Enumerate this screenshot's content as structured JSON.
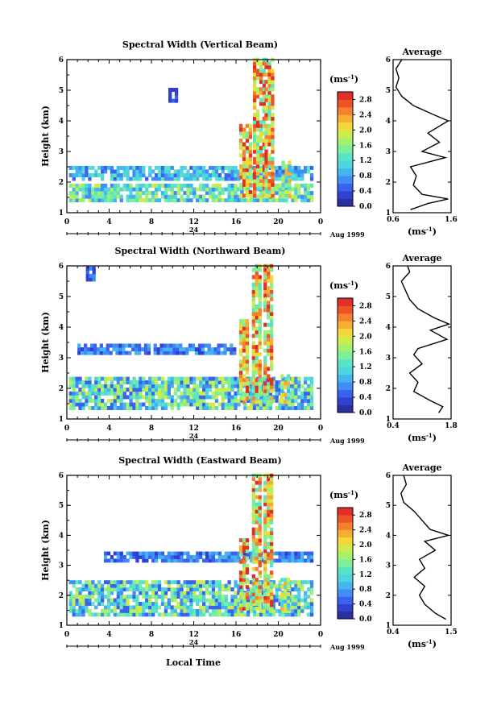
{
  "figure": {
    "xlabel": "Local Time",
    "ylabel": "Height (km)",
    "unit_label": "(ms",
    "unit_sup": "-1",
    "unit_close": ")",
    "average_title": "Average",
    "date_label": "Aug 1999"
  },
  "chart_data": [
    {
      "type": "heatmap",
      "title": "Spectral Width (Vertical Beam)",
      "xlim": [
        0,
        24
      ],
      "ylim": [
        1,
        6
      ],
      "x_ticks": [
        "0",
        "4",
        "8",
        "12",
        "16",
        "20",
        "0"
      ],
      "y_ticks": [
        "1",
        "2",
        "3",
        "4",
        "5",
        "6"
      ],
      "date_tick": "24",
      "colorbar_ticks": [
        "0.0",
        "0.4",
        "0.8",
        "1.2",
        "1.6",
        "2.0",
        "2.4",
        "2.8"
      ],
      "colorbar_range": [
        0,
        3.0
      ],
      "profile": {
        "title": "Average",
        "xlim": [
          0.6,
          1.6
        ],
        "x_ticks": [
          "0.6",
          "1.6"
        ],
        "y_ticks": [
          "1",
          "2",
          "3",
          "4",
          "5",
          "6"
        ],
        "heights": [
          1.1,
          1.3,
          1.45,
          1.6,
          1.9,
          2.2,
          2.5,
          2.8,
          3.0,
          3.3,
          3.6,
          4.0,
          4.2,
          4.5,
          4.8,
          5.1,
          5.4,
          5.7,
          6.0
        ],
        "values": [
          0.9,
          1.2,
          1.55,
          1.1,
          0.95,
          1.0,
          0.9,
          1.5,
          1.1,
          1.4,
          1.2,
          1.55,
          1.3,
          0.95,
          0.75,
          0.65,
          0.7,
          0.65,
          0.75
        ]
      },
      "regions": [
        {
          "t0": 0.2,
          "t1": 23.2,
          "h0": 1.35,
          "h1": 1.9,
          "v0": 0.6,
          "v1": 2.0
        },
        {
          "t0": 0.2,
          "t1": 23.2,
          "h0": 2.05,
          "h1": 2.45,
          "v0": 0.5,
          "v1": 1.4
        },
        {
          "t0": 16.3,
          "t1": 17.3,
          "h0": 1.5,
          "h1": 3.8,
          "v0": 1.4,
          "v1": 3.0
        },
        {
          "t0": 17.6,
          "t1": 18.6,
          "h0": 1.5,
          "h1": 6.0,
          "v0": 1.2,
          "v1": 3.0
        },
        {
          "t0": 18.7,
          "t1": 19.5,
          "h0": 1.5,
          "h1": 6.0,
          "v0": 1.2,
          "v1": 3.0
        },
        {
          "t0": 20.3,
          "t1": 21.0,
          "h0": 1.5,
          "h1": 2.6,
          "v0": 0.8,
          "v1": 2.4
        },
        {
          "t0": 9.6,
          "t1": 10.3,
          "h0": 4.6,
          "h1": 5.0,
          "v0": 0.2,
          "v1": 0.6
        }
      ]
    },
    {
      "type": "heatmap",
      "title": "Spectral Width (Northward Beam)",
      "xlim": [
        0,
        24
      ],
      "ylim": [
        1,
        6
      ],
      "x_ticks": [
        "0",
        "4",
        "8",
        "12",
        "16",
        "20",
        "0"
      ],
      "y_ticks": [
        "1",
        "2",
        "3",
        "4",
        "5",
        "6"
      ],
      "date_tick": "24",
      "colorbar_ticks": [
        "0.0",
        "0.4",
        "0.8",
        "1.2",
        "1.6",
        "2.0",
        "2.4",
        "2.8"
      ],
      "colorbar_range": [
        0,
        3.0
      ],
      "profile": {
        "title": "Average",
        "xlim": [
          0.4,
          1.8
        ],
        "x_ticks": [
          "0.4",
          "1.8"
        ],
        "y_ticks": [
          "1",
          "2",
          "3",
          "4",
          "5",
          "6"
        ],
        "heights": [
          1.2,
          1.4,
          1.6,
          1.9,
          2.2,
          2.5,
          2.8,
          3.1,
          3.3,
          3.6,
          3.9,
          4.1,
          4.3,
          4.6,
          4.9,
          5.2,
          5.5,
          5.8,
          6.0
        ],
        "values": [
          1.5,
          1.6,
          1.3,
          0.9,
          1.0,
          0.8,
          1.1,
          0.9,
          1.0,
          1.7,
          1.3,
          1.75,
          1.4,
          1.0,
          0.8,
          0.7,
          0.6,
          0.8,
          0.75
        ]
      },
      "regions": [
        {
          "t0": 0.2,
          "t1": 23.2,
          "h0": 1.3,
          "h1": 2.3,
          "v0": 0.4,
          "v1": 2.0
        },
        {
          "t0": 1.0,
          "t1": 16.0,
          "h0": 3.1,
          "h1": 3.4,
          "v0": 0.3,
          "v1": 1.0
        },
        {
          "t0": 16.3,
          "t1": 17.1,
          "h0": 1.5,
          "h1": 4.2,
          "v0": 1.4,
          "v1": 3.0
        },
        {
          "t0": 17.5,
          "t1": 18.3,
          "h0": 1.5,
          "h1": 6.0,
          "v0": 1.2,
          "v1": 3.0
        },
        {
          "t0": 18.6,
          "t1": 19.4,
          "h0": 1.5,
          "h1": 6.0,
          "v0": 1.2,
          "v1": 3.0
        },
        {
          "t0": 20.2,
          "t1": 21.0,
          "h0": 1.5,
          "h1": 2.4,
          "v0": 0.8,
          "v1": 2.4
        },
        {
          "t0": 1.8,
          "t1": 2.6,
          "h0": 5.5,
          "h1": 5.9,
          "v0": 0.3,
          "v1": 0.8
        }
      ]
    },
    {
      "type": "heatmap",
      "title": "Spectral Width (Eastward Beam)",
      "xlim": [
        0,
        24
      ],
      "ylim": [
        1,
        6
      ],
      "x_ticks": [
        "0",
        "4",
        "8",
        "12",
        "16",
        "20",
        "0"
      ],
      "y_ticks": [
        "1",
        "2",
        "3",
        "4",
        "5",
        "6"
      ],
      "date_tick": "24",
      "colorbar_ticks": [
        "0.0",
        "0.4",
        "0.8",
        "1.2",
        "1.6",
        "2.0",
        "2.4",
        "2.8"
      ],
      "colorbar_range": [
        0,
        3.0
      ],
      "profile": {
        "title": "Average",
        "xlim": [
          0.4,
          1.5
        ],
        "x_ticks": [
          "0.4",
          "1.5"
        ],
        "y_ticks": [
          "1",
          "2",
          "3",
          "4",
          "5",
          "6"
        ],
        "heights": [
          1.2,
          1.4,
          1.7,
          2.0,
          2.3,
          2.6,
          2.9,
          3.2,
          3.5,
          3.8,
          4.0,
          4.2,
          4.5,
          4.8,
          5.1,
          5.4,
          5.7,
          6.0
        ],
        "values": [
          1.4,
          1.2,
          1.0,
          0.9,
          1.0,
          0.8,
          1.0,
          0.9,
          1.2,
          1.0,
          1.45,
          1.1,
          0.95,
          0.8,
          0.6,
          0.55,
          0.65,
          0.6
        ]
      },
      "regions": [
        {
          "t0": 0.2,
          "t1": 23.2,
          "h0": 1.3,
          "h1": 2.5,
          "v0": 0.4,
          "v1": 2.0
        },
        {
          "t0": 3.5,
          "t1": 23.2,
          "h0": 3.1,
          "h1": 3.4,
          "v0": 0.3,
          "v1": 1.0
        },
        {
          "t0": 16.3,
          "t1": 17.1,
          "h0": 1.5,
          "h1": 3.9,
          "v0": 1.4,
          "v1": 3.0
        },
        {
          "t0": 17.5,
          "t1": 18.3,
          "h0": 1.5,
          "h1": 6.0,
          "v0": 1.2,
          "v1": 3.0
        },
        {
          "t0": 18.6,
          "t1": 19.4,
          "h0": 1.5,
          "h1": 6.0,
          "v0": 1.2,
          "v1": 3.0
        },
        {
          "t0": 20.2,
          "t1": 21.0,
          "h0": 1.5,
          "h1": 2.5,
          "v0": 0.8,
          "v1": 2.4
        }
      ]
    }
  ]
}
